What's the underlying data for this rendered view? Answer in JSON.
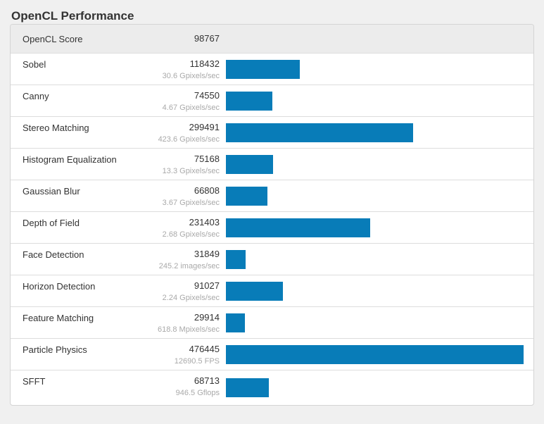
{
  "title": "OpenCL Performance",
  "summary": {
    "label": "OpenCL Score",
    "value": "98767"
  },
  "colors": {
    "bar": "#087cb8",
    "page_bg": "#f0f0f0",
    "card_bg": "#ffffff",
    "header_bg": "#ececec",
    "border": "#d4d4d4",
    "divider": "#dddddd",
    "text": "#333333",
    "muted": "#a9a9a9"
  },
  "chart_data": {
    "type": "bar",
    "orientation": "horizontal",
    "title": "OpenCL Performance",
    "summary_label": "OpenCL Score",
    "summary_value": 98767,
    "categories": [
      "Sobel",
      "Canny",
      "Stereo Matching",
      "Histogram Equalization",
      "Gaussian Blur",
      "Depth of Field",
      "Face Detection",
      "Horizon Detection",
      "Feature Matching",
      "Particle Physics",
      "SFFT"
    ],
    "values": [
      118432,
      74550,
      299491,
      75168,
      66808,
      231403,
      31849,
      91027,
      29914,
      476445,
      68713
    ],
    "rates": [
      "30.6 Gpixels/sec",
      "4.67 Gpixels/sec",
      "423.6 Gpixels/sec",
      "13.3 Gpixels/sec",
      "3.67 Gpixels/sec",
      "2.68 Gpixels/sec",
      "245.2 images/sec",
      "2.24 Gpixels/sec",
      "618.8 Mpixels/sec",
      "12690.5 FPS",
      "946.5 Gflops"
    ],
    "max": 476445,
    "xlim": [
      0,
      476445
    ],
    "legend": false,
    "grid": false
  }
}
